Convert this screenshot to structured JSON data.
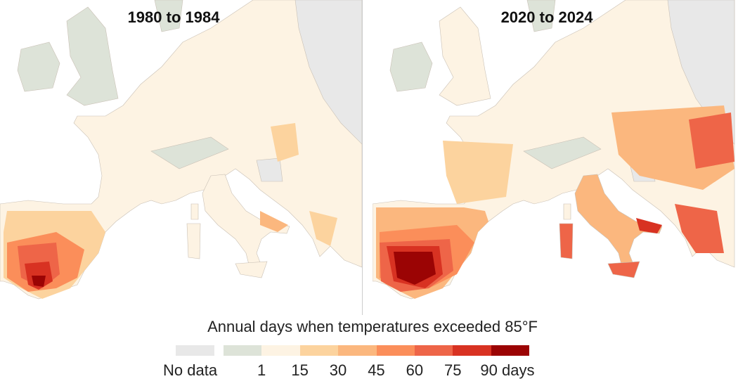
{
  "panels": [
    {
      "title": "1980 to 1984"
    },
    {
      "title": "2020 to 2024"
    }
  ],
  "legend": {
    "title": "Annual days when temperatures exceeded 85°F",
    "no_data_label": "No data",
    "no_data_color": "#e8e8e8",
    "bins": [
      {
        "color": "#dde3d8"
      },
      {
        "color": "#fdf3e3"
      },
      {
        "color": "#fcd39e"
      },
      {
        "color": "#fbb77e"
      },
      {
        "color": "#fb8e5a"
      },
      {
        "color": "#ee6548"
      },
      {
        "color": "#d83222"
      },
      {
        "color": "#9b0404"
      }
    ],
    "ticks": [
      "1",
      "15",
      "30",
      "45",
      "60",
      "75",
      "90 days"
    ]
  }
}
